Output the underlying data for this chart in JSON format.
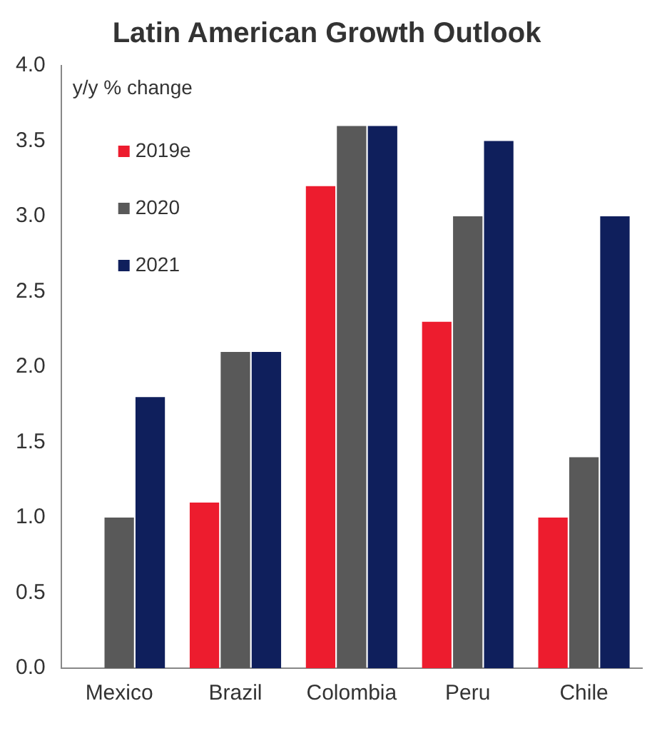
{
  "chart_data": {
    "type": "bar",
    "title": "Latin American Growth Outlook",
    "ylabel": "y/y % change",
    "categories": [
      "Mexico",
      "Brazil",
      "Colombia",
      "Peru",
      "Chile"
    ],
    "series": [
      {
        "name": "2019e",
        "color": "#ed1c2e",
        "values": [
          0,
          1.1,
          3.2,
          2.3,
          1.0
        ]
      },
      {
        "name": "2020",
        "color": "#595959",
        "values": [
          1.0,
          2.1,
          3.6,
          3.0,
          1.4
        ]
      },
      {
        "name": "2021",
        "color": "#0f1f5c",
        "values": [
          1.8,
          2.1,
          3.6,
          3.5,
          3.0
        ]
      }
    ],
    "ylim": [
      0,
      4
    ],
    "yticks": [
      {
        "value": 0,
        "label": "0.0"
      },
      {
        "value": 0.5,
        "label": "0.5"
      },
      {
        "value": 1,
        "label": "1.0"
      },
      {
        "value": 1.5,
        "label": "1.5"
      },
      {
        "value": 2,
        "label": "2.0"
      },
      {
        "value": 2.5,
        "label": "2.5"
      },
      {
        "value": 3,
        "label": "3.0"
      },
      {
        "value": 3.5,
        "label": "3.5"
      },
      {
        "value": 4,
        "label": "4.0"
      }
    ],
    "grid": false,
    "legend": "top left"
  }
}
